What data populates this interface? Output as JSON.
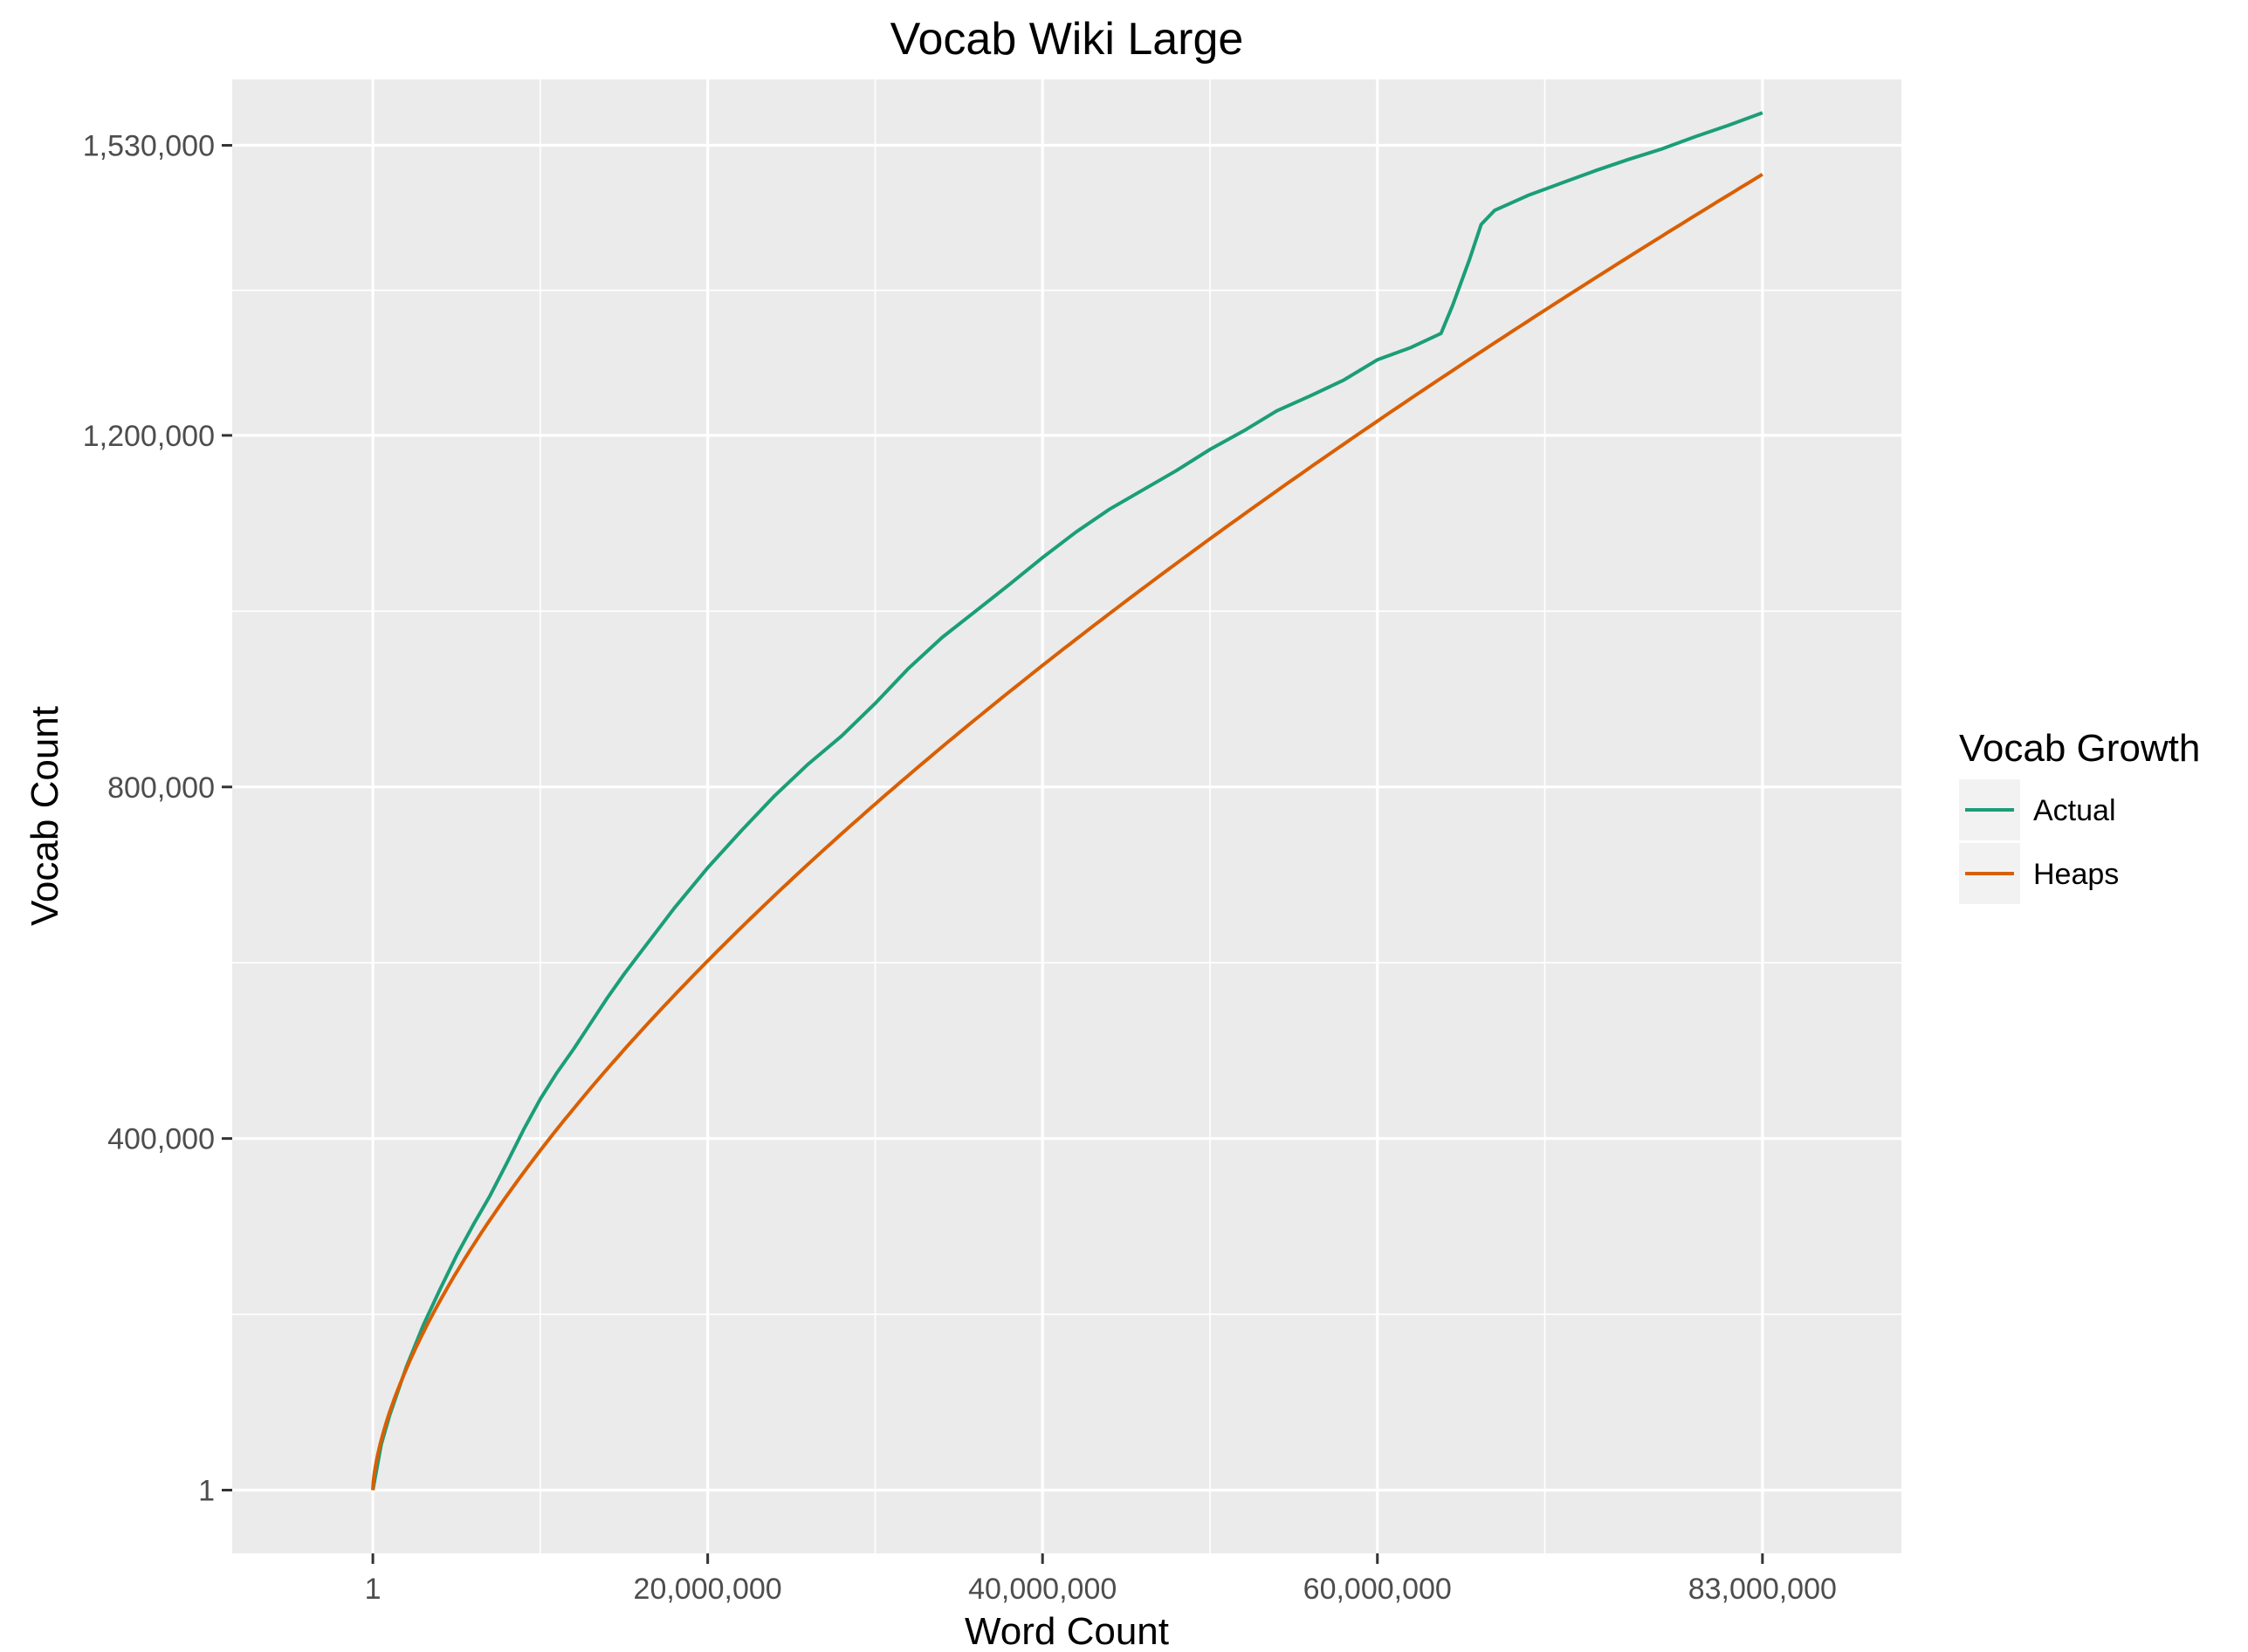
{
  "chart_data": {
    "type": "line",
    "title": "Vocab Wiki Large",
    "xlabel": "Word Count",
    "ylabel": "Vocab Count",
    "xlim": [
      -8400000,
      91300000
    ],
    "ylim": [
      -72000,
      1605000
    ],
    "x_ticks": [
      1,
      20000000,
      40000000,
      60000000,
      83000000
    ],
    "x_tick_labels": [
      "1",
      "20,000,000",
      "40,000,000",
      "60,000,000",
      "83,000,000"
    ],
    "x_minor_ticks": [
      10000000,
      30000000,
      50000000,
      70000000
    ],
    "y_ticks": [
      1,
      400000,
      800000,
      1200000,
      1530000
    ],
    "y_tick_labels": [
      "1",
      "400,000",
      "800,000",
      "1,200,000",
      "1,530,000"
    ],
    "y_minor_ticks": [
      200000,
      600000,
      1000000,
      1365000
    ],
    "grid": true,
    "legend": {
      "title": "Vocab Growth",
      "position": "right"
    },
    "colors": {
      "Actual": "#1b9e77",
      "Heaps": "#d95f02",
      "panel": "#ebebeb",
      "grid": "#ffffff"
    },
    "series": [
      {
        "name": "Actual",
        "color": "#1b9e77",
        "x": [
          1,
          500000,
          1000000,
          2000000,
          3000000,
          4000000,
          5000000,
          6000000,
          7000000,
          8000000,
          9000000,
          10000000,
          11000000,
          12000000,
          13000000,
          14000000,
          15000000,
          16000000,
          18000000,
          20000000,
          22000000,
          24000000,
          26000000,
          28000000,
          30000000,
          32000000,
          34000000,
          36000000,
          38000000,
          40000000,
          42000000,
          44000000,
          46000000,
          48000000,
          50000000,
          52000000,
          54000000,
          56000000,
          58000000,
          60000000,
          62000000,
          63800000,
          64500000,
          65500000,
          66200000,
          67000000,
          69000000,
          71000000,
          73000000,
          75000000,
          77000000,
          79000000,
          81000000,
          83000000
        ],
        "values": [
          1,
          52000,
          85000,
          140000,
          187000,
          228000,
          267000,
          302000,
          335000,
          372000,
          410000,
          445000,
          475000,
          502000,
          531000,
          560000,
          587000,
          612000,
          662000,
          708000,
          750000,
          790000,
          826000,
          858000,
          895000,
          935000,
          970000,
          1000000,
          1030000,
          1061000,
          1090000,
          1116000,
          1138000,
          1160000,
          1184000,
          1205000,
          1228000,
          1245000,
          1263000,
          1286000,
          1300000,
          1316000,
          1348000,
          1400000,
          1440000,
          1456000,
          1473000,
          1487000,
          1501000,
          1514000,
          1526000,
          1540000,
          1553000,
          1567000
        ]
      },
      {
        "name": "Heaps",
        "color": "#d95f02"
      }
    ]
  }
}
